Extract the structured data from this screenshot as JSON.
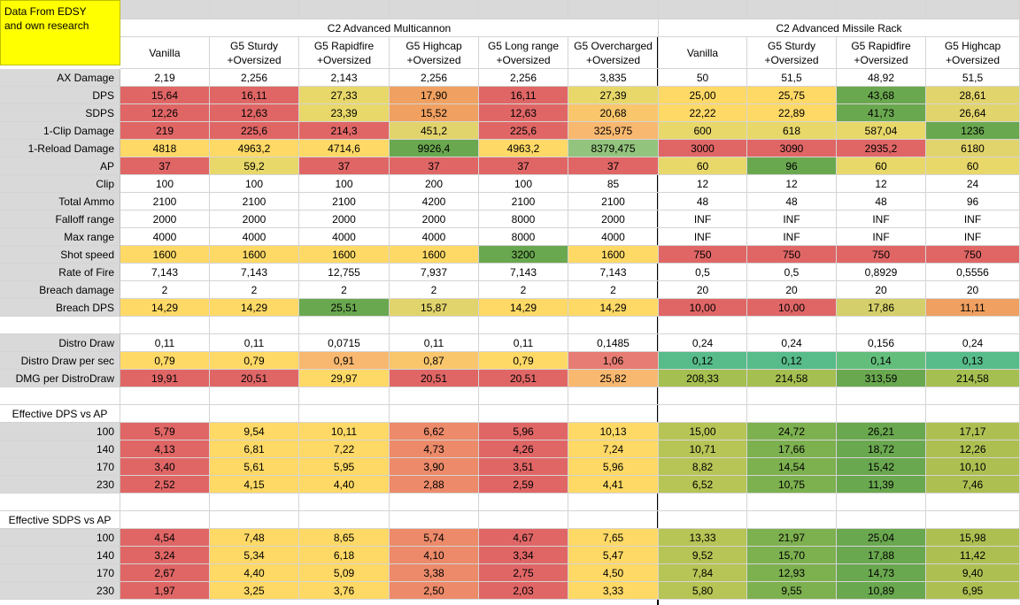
{
  "note_text": "Data From EDSY\nand own research",
  "groups": [
    {
      "title": "C2 Advanced Multicannon",
      "start": 0,
      "span": 6
    },
    {
      "title": "C2 Advanced Missile Rack",
      "start": 6,
      "span": 4
    }
  ],
  "columns": [
    {
      "line1": "Vanilla",
      "line2": ""
    },
    {
      "line1": "G5 Sturdy",
      "line2": "+Oversized"
    },
    {
      "line1": "G5 Rapidfire",
      "line2": "+Oversized"
    },
    {
      "line1": "G5 Highcap",
      "line2": "+Oversized"
    },
    {
      "line1": "G5 Long range",
      "line2": "+Oversized"
    },
    {
      "line1": "G5 Overcharged",
      "line2": "+Oversized"
    },
    {
      "line1": "Vanilla",
      "line2": ""
    },
    {
      "line1": "G5 Sturdy",
      "line2": "+Oversized"
    },
    {
      "line1": "G5 Rapidfire",
      "line2": "+Oversized"
    },
    {
      "line1": "G5 Highcap",
      "line2": "+Oversized"
    }
  ],
  "rows": [
    {
      "type": "data",
      "label": "AX Damage",
      "values": [
        "2,19",
        "2,256",
        "2,143",
        "2,256",
        "2,256",
        "3,835",
        "50",
        "51,5",
        "48,92",
        "51,5"
      ]
    },
    {
      "type": "data",
      "label": "DPS",
      "values": [
        "15,64",
        "16,11",
        "27,33",
        "17,90",
        "16,11",
        "27,39",
        "25,00",
        "25,75",
        "43,68",
        "28,61"
      ],
      "colors": [
        "#e06666",
        "#e06666",
        "#e8d86a",
        "#f0a060",
        "#e06666",
        "#e8d86a",
        "#ffd966",
        "#ffd966",
        "#6aa84f",
        "#e2d46c"
      ]
    },
    {
      "type": "data",
      "label": "SDPS",
      "values": [
        "12,26",
        "12,63",
        "23,39",
        "15,52",
        "12,63",
        "20,68",
        "22,22",
        "22,89",
        "41,73",
        "26,64"
      ],
      "colors": [
        "#e06666",
        "#e06666",
        "#e8d86a",
        "#f0a060",
        "#e06666",
        "#f9c66c",
        "#ffd966",
        "#ffd966",
        "#6aa84f",
        "#e2d46c"
      ]
    },
    {
      "type": "data",
      "label": "1-Clip Damage",
      "values": [
        "219",
        "225,6",
        "214,3",
        "451,2",
        "225,6",
        "325,975",
        "600",
        "618",
        "587,04",
        "1236"
      ],
      "colors": [
        "#e06666",
        "#e06666",
        "#e06666",
        "#e2d46c",
        "#e06666",
        "#f9b870",
        "#e8d86a",
        "#e8d86a",
        "#e8d86a",
        "#6aa84f"
      ]
    },
    {
      "type": "data",
      "label": "1-Reload Damage",
      "values": [
        "4818",
        "4963,2",
        "4714,6",
        "9926,4",
        "4963,2",
        "8379,475",
        "3000",
        "3090",
        "2935,2",
        "6180"
      ],
      "colors": [
        "#ffd966",
        "#ffd966",
        "#ffd966",
        "#6aa84f",
        "#ffd966",
        "#93c47d",
        "#e06666",
        "#e06666",
        "#e06666",
        "#e2d46c"
      ]
    },
    {
      "type": "data",
      "label": "AP",
      "values": [
        "37",
        "59,2",
        "37",
        "37",
        "37",
        "37",
        "60",
        "96",
        "60",
        "60"
      ],
      "colors": [
        "#e06666",
        "#e8d86a",
        "#e06666",
        "#e06666",
        "#e06666",
        "#e06666",
        "#e8d86a",
        "#6aa84f",
        "#e8d86a",
        "#e8d86a"
      ]
    },
    {
      "type": "data",
      "label": "Clip",
      "values": [
        "100",
        "100",
        "100",
        "200",
        "100",
        "85",
        "12",
        "12",
        "12",
        "24"
      ]
    },
    {
      "type": "data",
      "label": "Total Ammo",
      "values": [
        "2100",
        "2100",
        "2100",
        "4200",
        "2100",
        "2100",
        "48",
        "48",
        "48",
        "96"
      ]
    },
    {
      "type": "data",
      "label": "Falloff range",
      "values": [
        "2000",
        "2000",
        "2000",
        "2000",
        "8000",
        "2000",
        "INF",
        "INF",
        "INF",
        "INF"
      ]
    },
    {
      "type": "data",
      "label": "Max range",
      "values": [
        "4000",
        "4000",
        "4000",
        "4000",
        "8000",
        "4000",
        "INF",
        "INF",
        "INF",
        "INF"
      ]
    },
    {
      "type": "data",
      "label": "Shot speed",
      "values": [
        "1600",
        "1600",
        "1600",
        "1600",
        "3200",
        "1600",
        "750",
        "750",
        "750",
        "750"
      ],
      "colors": [
        "#ffd966",
        "#ffd966",
        "#ffd966",
        "#ffd966",
        "#6aa84f",
        "#ffd966",
        "#e06666",
        "#e06666",
        "#e06666",
        "#e06666"
      ]
    },
    {
      "type": "data",
      "label": "Rate of Fire",
      "values": [
        "7,143",
        "7,143",
        "12,755",
        "7,937",
        "7,143",
        "7,143",
        "0,5",
        "0,5",
        "0,8929",
        "0,5556"
      ]
    },
    {
      "type": "data",
      "label": "Breach damage",
      "values": [
        "2",
        "2",
        "2",
        "2",
        "2",
        "2",
        "20",
        "20",
        "20",
        "20"
      ]
    },
    {
      "type": "data",
      "label": "Breach DPS",
      "values": [
        "14,29",
        "14,29",
        "25,51",
        "15,87",
        "14,29",
        "14,29",
        "10,00",
        "10,00",
        "17,86",
        "11,11"
      ],
      "colors": [
        "#ffd966",
        "#ffd966",
        "#6aa84f",
        "#e2d46c",
        "#ffd966",
        "#ffd966",
        "#e06666",
        "#e06666",
        "#d5cf6b",
        "#f0a060"
      ]
    },
    {
      "type": "blank"
    },
    {
      "type": "data",
      "label": "Distro Draw",
      "values": [
        "0,11",
        "0,11",
        "0,0715",
        "0,11",
        "0,11",
        "0,1485",
        "0,24",
        "0,24",
        "0,156",
        "0,24"
      ]
    },
    {
      "type": "data",
      "label": "Distro Draw per sec",
      "values": [
        "0,79",
        "0,79",
        "0,91",
        "0,87",
        "0,79",
        "1,06",
        "0,12",
        "0,12",
        "0,14",
        "0,13"
      ],
      "colors": [
        "#ffd966",
        "#ffd966",
        "#f9b870",
        "#f9c66c",
        "#ffd966",
        "#e67c73",
        "#57bb8a",
        "#57bb8a",
        "#63be7b",
        "#57bb8a"
      ]
    },
    {
      "type": "data",
      "label": "DMG per DistroDraw",
      "values": [
        "19,91",
        "20,51",
        "29,97",
        "20,51",
        "20,51",
        "25,82",
        "208,33",
        "214,58",
        "313,59",
        "214,58"
      ],
      "colors": [
        "#e06666",
        "#e06666",
        "#ffd966",
        "#e06666",
        "#e06666",
        "#f9b870",
        "#a5bf50",
        "#a5bf50",
        "#6aa84f",
        "#a5bf50"
      ]
    },
    {
      "type": "blank"
    },
    {
      "type": "section",
      "label": "Effective DPS vs AP"
    },
    {
      "type": "data",
      "label": "100",
      "values": [
        "5,79",
        "9,54",
        "10,11",
        "6,62",
        "5,96",
        "10,13",
        "15,00",
        "24,72",
        "26,21",
        "17,17"
      ],
      "colors": [
        "#e06666",
        "#ffd966",
        "#ffd966",
        "#ec8a6a",
        "#e06666",
        "#ffd966",
        "#b7c456",
        "#7db04f",
        "#6aa84f",
        "#aebf52"
      ]
    },
    {
      "type": "data",
      "label": "140",
      "values": [
        "4,13",
        "6,81",
        "7,22",
        "4,73",
        "4,26",
        "7,24",
        "10,71",
        "17,66",
        "18,72",
        "12,26"
      ],
      "colors": [
        "#e06666",
        "#ffd966",
        "#ffd966",
        "#ec8a6a",
        "#e06666",
        "#ffd966",
        "#b7c456",
        "#7db04f",
        "#6aa84f",
        "#aebf52"
      ]
    },
    {
      "type": "data",
      "label": "170",
      "values": [
        "3,40",
        "5,61",
        "5,95",
        "3,90",
        "3,51",
        "5,96",
        "8,82",
        "14,54",
        "15,42",
        "10,10"
      ],
      "colors": [
        "#e06666",
        "#ffd966",
        "#ffd966",
        "#ec8a6a",
        "#e06666",
        "#ffd966",
        "#b7c456",
        "#7db04f",
        "#6aa84f",
        "#aebf52"
      ]
    },
    {
      "type": "data",
      "label": "230",
      "values": [
        "2,52",
        "4,15",
        "4,40",
        "2,88",
        "2,59",
        "4,41",
        "6,52",
        "10,75",
        "11,39",
        "7,46"
      ],
      "colors": [
        "#e06666",
        "#ffd966",
        "#ffd966",
        "#ec8a6a",
        "#e06666",
        "#ffd966",
        "#b7c456",
        "#7db04f",
        "#6aa84f",
        "#aebf52"
      ]
    },
    {
      "type": "blank"
    },
    {
      "type": "section",
      "label": "Effective SDPS vs AP"
    },
    {
      "type": "data",
      "label": "100",
      "values": [
        "4,54",
        "7,48",
        "8,65",
        "5,74",
        "4,67",
        "7,65",
        "13,33",
        "21,97",
        "25,04",
        "15,98"
      ],
      "colors": [
        "#e06666",
        "#ffd966",
        "#ffd966",
        "#ec8a6a",
        "#e06666",
        "#ffd966",
        "#b7c456",
        "#7db04f",
        "#6aa84f",
        "#aebf52"
      ]
    },
    {
      "type": "data",
      "label": "140",
      "values": [
        "3,24",
        "5,34",
        "6,18",
        "4,10",
        "3,34",
        "5,47",
        "9,52",
        "15,70",
        "17,88",
        "11,42"
      ],
      "colors": [
        "#e06666",
        "#ffd966",
        "#ffd966",
        "#ec8a6a",
        "#e06666",
        "#ffd966",
        "#b7c456",
        "#7db04f",
        "#6aa84f",
        "#aebf52"
      ]
    },
    {
      "type": "data",
      "label": "170",
      "values": [
        "2,67",
        "4,40",
        "5,09",
        "3,38",
        "2,75",
        "4,50",
        "7,84",
        "12,93",
        "14,73",
        "9,40"
      ],
      "colors": [
        "#e06666",
        "#ffd966",
        "#ffd966",
        "#ec8a6a",
        "#e06666",
        "#ffd966",
        "#b7c456",
        "#7db04f",
        "#6aa84f",
        "#aebf52"
      ]
    },
    {
      "type": "data",
      "label": "230",
      "values": [
        "1,97",
        "3,25",
        "3,76",
        "2,50",
        "2,03",
        "3,33",
        "5,80",
        "9,55",
        "10,89",
        "6,95"
      ],
      "colors": [
        "#e06666",
        "#ffd966",
        "#ffd966",
        "#ec8a6a",
        "#e06666",
        "#ffd966",
        "#b7c456",
        "#7db04f",
        "#6aa84f",
        "#aebf52"
      ]
    }
  ]
}
